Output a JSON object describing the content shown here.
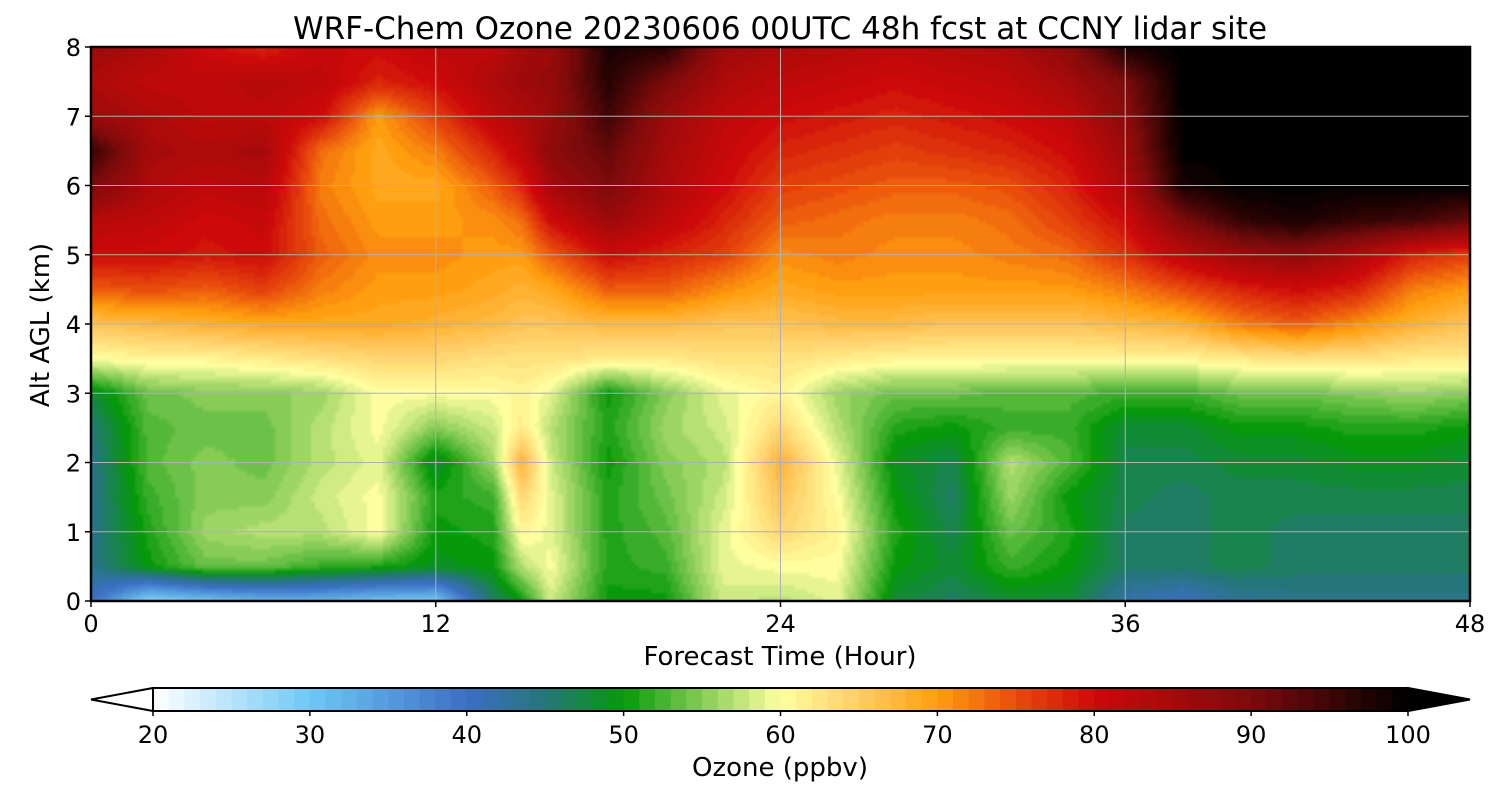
{
  "chart_data": {
    "type": "heatmap",
    "title": "WRF-Chem Ozone  20230606 00UTC 48h fcst at CCNY lidar site",
    "xlabel": "Forecast Time (Hour)",
    "ylabel": "Alt AGL (km)",
    "xlim": [
      0,
      48
    ],
    "ylim": [
      0,
      8
    ],
    "x_ticks": [
      "0",
      "12",
      "24",
      "36",
      "48"
    ],
    "y_ticks": [
      "0",
      "1",
      "2",
      "3",
      "4",
      "5",
      "6",
      "7",
      "8"
    ],
    "grid": true,
    "colorbar": {
      "label": "Ozone  (ppbv)",
      "range": [
        20,
        100
      ],
      "extend": "both",
      "ticks": [
        "20",
        "30",
        "40",
        "50",
        "60",
        "70",
        "80",
        "90",
        "100"
      ],
      "stops": [
        {
          "v": 20,
          "c": "#ffffff"
        },
        {
          "v": 30,
          "c": "#6ec8f5"
        },
        {
          "v": 40,
          "c": "#3b6fc4"
        },
        {
          "v": 45,
          "c": "#25767a"
        },
        {
          "v": 50,
          "c": "#06990a"
        },
        {
          "v": 55,
          "c": "#86cc57"
        },
        {
          "v": 60,
          "c": "#ffffa0"
        },
        {
          "v": 65,
          "c": "#ffcd66"
        },
        {
          "v": 70,
          "c": "#ff9f0f"
        },
        {
          "v": 75,
          "c": "#e84c0c"
        },
        {
          "v": 80,
          "c": "#cd0909"
        },
        {
          "v": 90,
          "c": "#7c0b0b"
        },
        {
          "v": 100,
          "c": "#000000"
        }
      ]
    },
    "altitudes_km": [
      0,
      0.5,
      1,
      1.5,
      2,
      2.5,
      3,
      3.5,
      4,
      4.5,
      5,
      5.5,
      6,
      6.5,
      7,
      7.5,
      8
    ],
    "hours": [
      0,
      2,
      4,
      6,
      8,
      10,
      12,
      14,
      15,
      16,
      18,
      20,
      22,
      24,
      26,
      28,
      30,
      32,
      34,
      36,
      38,
      40,
      42,
      44,
      46,
      48
    ],
    "ozone_ppbv_profiles": [
      [
        40,
        44,
        44,
        44,
        44,
        45,
        48,
        60,
        66,
        74,
        80,
        83,
        90,
        96,
        86,
        84,
        86
      ],
      [
        28,
        50,
        51,
        52,
        53,
        53,
        54,
        61,
        67,
        75,
        80,
        82,
        84,
        85,
        84,
        82,
        84
      ],
      [
        30,
        54,
        56,
        55,
        55,
        54,
        55,
        61,
        68,
        74,
        79,
        80,
        82,
        84,
        82,
        82,
        80
      ],
      [
        32,
        54,
        57,
        55,
        54,
        54,
        55,
        62,
        69,
        76,
        80,
        81,
        83,
        85,
        82,
        83,
        78
      ],
      [
        32,
        52,
        57,
        58,
        57,
        57,
        56,
        63,
        69,
        72,
        74,
        73,
        72,
        73,
        80,
        82,
        81
      ],
      [
        30,
        51,
        60,
        60,
        59,
        60,
        60,
        64,
        69,
        70,
        71,
        70,
        69,
        69,
        70,
        78,
        80
      ],
      [
        30,
        49,
        50,
        51,
        48,
        55,
        60,
        64,
        68,
        70,
        71,
        70,
        69,
        72,
        76,
        80,
        82
      ],
      [
        46,
        50,
        51,
        52,
        56,
        58,
        60,
        63,
        67,
        69,
        70,
        71,
        74,
        78,
        82,
        84,
        82
      ],
      [
        50,
        57,
        61,
        64,
        68,
        62,
        61,
        63,
        66,
        68,
        70,
        73,
        78,
        82,
        84,
        86,
        85
      ],
      [
        58,
        60,
        59,
        59,
        58,
        57,
        59,
        63,
        66,
        69,
        74,
        80,
        85,
        88,
        86,
        87,
        86
      ],
      [
        50,
        51,
        51,
        51,
        50,
        51,
        50,
        62,
        67,
        74,
        80,
        86,
        90,
        92,
        95,
        97,
        98
      ],
      [
        50,
        52,
        53,
        54,
        55,
        56,
        55,
        62,
        67,
        74,
        78,
        82,
        84,
        85,
        86,
        90,
        97
      ],
      [
        58,
        59,
        59,
        58,
        57,
        58,
        59,
        63,
        66,
        71,
        76,
        78,
        80,
        81,
        82,
        84,
        86
      ],
      [
        57,
        60,
        64,
        66,
        68,
        64,
        61,
        63,
        66,
        69,
        71,
        74,
        76,
        78,
        80,
        82,
        84
      ],
      [
        59,
        60,
        61,
        60,
        59,
        57,
        56,
        62,
        67,
        70,
        72,
        73,
        75,
        77,
        79,
        81,
        83
      ],
      [
        48,
        50,
        51,
        50,
        49,
        51,
        54,
        61,
        67,
        70,
        71,
        72,
        74,
        76,
        78,
        80,
        82
      ],
      [
        46,
        48,
        47,
        46,
        47,
        50,
        54,
        61,
        66,
        70,
        71,
        72,
        74,
        77,
        79,
        81,
        83
      ],
      [
        48,
        52,
        54,
        56,
        57,
        52,
        53,
        61,
        66,
        70,
        72,
        73,
        75,
        78,
        80,
        82,
        84
      ],
      [
        48,
        50,
        51,
        50,
        53,
        52,
        53,
        61,
        66,
        70,
        73,
        76,
        78,
        80,
        82,
        85,
        88
      ],
      [
        42,
        46,
        46,
        47,
        47,
        48,
        52,
        61,
        67,
        72,
        77,
        80,
        84,
        86,
        88,
        90,
        98
      ],
      [
        40,
        46,
        46,
        46,
        47,
        48,
        52,
        61,
        68,
        75,
        82,
        90,
        98,
        100,
        100,
        100,
        100
      ],
      [
        43,
        47,
        47,
        47,
        48,
        50,
        54,
        62,
        72,
        78,
        86,
        96,
        100,
        100,
        100,
        100,
        100
      ],
      [
        44,
        46,
        46,
        47,
        48,
        50,
        54,
        63,
        74,
        80,
        88,
        98,
        100,
        100,
        100,
        100,
        100
      ],
      [
        44,
        46,
        46,
        47,
        49,
        51,
        55,
        63,
        71,
        78,
        84,
        96,
        100,
        100,
        100,
        100,
        100
      ],
      [
        44,
        46,
        46,
        47,
        49,
        51,
        56,
        62,
        68,
        72,
        78,
        95,
        100,
        100,
        100,
        100,
        100
      ],
      [
        44,
        46,
        46,
        47,
        48,
        50,
        55,
        62,
        66,
        70,
        76,
        92,
        100,
        100,
        100,
        100,
        100
      ]
    ]
  }
}
